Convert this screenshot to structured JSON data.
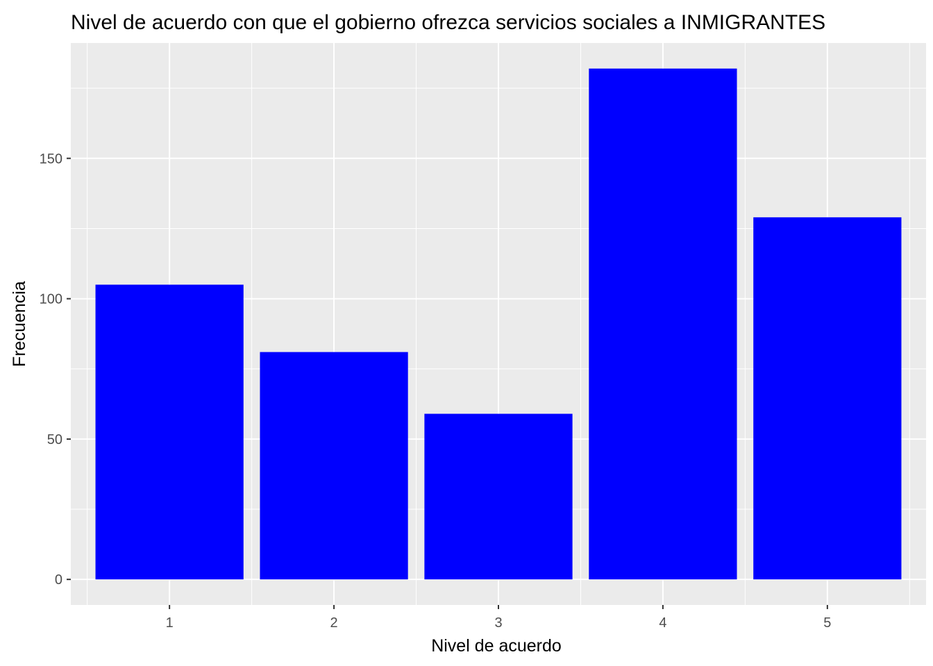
{
  "chart_data": {
    "type": "bar",
    "title": "Nivel de acuerdo con que el gobierno ofrezca servicios sociales a INMIGRANTES",
    "xlabel": "Nivel de acuerdo",
    "ylabel": "Frecuencia",
    "categories": [
      "1",
      "2",
      "3",
      "4",
      "5"
    ],
    "values": [
      105,
      81,
      59,
      182,
      129
    ],
    "ylim": [
      -9.1,
      191.1
    ],
    "yticks": [
      0,
      50,
      100,
      150
    ],
    "grid": true,
    "legend": "none",
    "colors": {
      "bar": "#0000FF",
      "panel": "#EBEBEB",
      "grid_major": "#FFFFFF",
      "tick_label": "#4D4D4D",
      "tick_mark": "#333333"
    }
  }
}
